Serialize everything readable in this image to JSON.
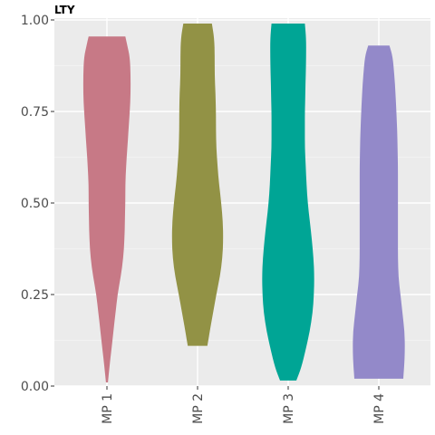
{
  "chart_data": {
    "type": "violin",
    "title": "LTY",
    "xlabel": "",
    "ylabel": "",
    "ylim": [
      0,
      1
    ],
    "yticks": [
      0,
      0.25,
      0.5,
      0.75,
      1
    ],
    "ytick_labels": [
      "0.00",
      "0.25",
      "0.50",
      "0.75",
      "1.00"
    ],
    "grid": true,
    "legend": "none",
    "categories": [
      "MP 1",
      "MP 2",
      "MP 3",
      "MP 4"
    ],
    "series": [
      {
        "category": "MP 1",
        "color": "#C77986",
        "min": 0.01,
        "max": 0.955,
        "profile": [
          [
            0.01,
            0.025
          ],
          [
            0.05,
            0.06
          ],
          [
            0.1,
            0.11
          ],
          [
            0.15,
            0.16
          ],
          [
            0.2,
            0.21
          ],
          [
            0.25,
            0.26
          ],
          [
            0.3,
            0.34
          ],
          [
            0.35,
            0.4
          ],
          [
            0.4,
            0.43
          ],
          [
            0.45,
            0.44
          ],
          [
            0.5,
            0.45
          ],
          [
            0.55,
            0.45
          ],
          [
            0.6,
            0.47
          ],
          [
            0.65,
            0.5
          ],
          [
            0.7,
            0.53
          ],
          [
            0.75,
            0.56
          ],
          [
            0.8,
            0.58
          ],
          [
            0.85,
            0.58
          ],
          [
            0.9,
            0.56
          ],
          [
            0.93,
            0.5
          ],
          [
            0.955,
            0.45
          ]
        ]
      },
      {
        "category": "MP 2",
        "color": "#929245",
        "min": 0.11,
        "max": 0.99,
        "profile": [
          [
            0.11,
            0.24
          ],
          [
            0.15,
            0.3
          ],
          [
            0.2,
            0.38
          ],
          [
            0.25,
            0.46
          ],
          [
            0.3,
            0.55
          ],
          [
            0.35,
            0.61
          ],
          [
            0.4,
            0.63
          ],
          [
            0.45,
            0.62
          ],
          [
            0.5,
            0.58
          ],
          [
            0.55,
            0.53
          ],
          [
            0.6,
            0.49
          ],
          [
            0.65,
            0.46
          ],
          [
            0.7,
            0.45
          ],
          [
            0.75,
            0.45
          ],
          [
            0.8,
            0.44
          ],
          [
            0.85,
            0.42
          ],
          [
            0.9,
            0.42
          ],
          [
            0.95,
            0.41
          ],
          [
            0.99,
            0.35
          ]
        ]
      },
      {
        "category": "MP 3",
        "color": "#00A595",
        "min": 0.015,
        "max": 0.99,
        "profile": [
          [
            0.015,
            0.2
          ],
          [
            0.05,
            0.32
          ],
          [
            0.1,
            0.43
          ],
          [
            0.15,
            0.53
          ],
          [
            0.2,
            0.6
          ],
          [
            0.25,
            0.63
          ],
          [
            0.3,
            0.64
          ],
          [
            0.35,
            0.62
          ],
          [
            0.4,
            0.58
          ],
          [
            0.45,
            0.53
          ],
          [
            0.5,
            0.48
          ],
          [
            0.55,
            0.45
          ],
          [
            0.6,
            0.43
          ],
          [
            0.65,
            0.41
          ],
          [
            0.7,
            0.41
          ],
          [
            0.75,
            0.41
          ],
          [
            0.8,
            0.42
          ],
          [
            0.85,
            0.43
          ],
          [
            0.9,
            0.44
          ],
          [
            0.95,
            0.44
          ],
          [
            0.99,
            0.41
          ]
        ]
      },
      {
        "category": "MP 4",
        "color": "#9389C9",
        "min": 0.02,
        "max": 0.93,
        "profile": [
          [
            0.02,
            0.6
          ],
          [
            0.05,
            0.62
          ],
          [
            0.1,
            0.64
          ],
          [
            0.15,
            0.63
          ],
          [
            0.2,
            0.58
          ],
          [
            0.25,
            0.53
          ],
          [
            0.3,
            0.48
          ],
          [
            0.35,
            0.47
          ],
          [
            0.4,
            0.47
          ],
          [
            0.45,
            0.47
          ],
          [
            0.5,
            0.47
          ],
          [
            0.55,
            0.47
          ],
          [
            0.6,
            0.47
          ],
          [
            0.65,
            0.46
          ],
          [
            0.7,
            0.45
          ],
          [
            0.75,
            0.43
          ],
          [
            0.8,
            0.41
          ],
          [
            0.85,
            0.38
          ],
          [
            0.9,
            0.34
          ],
          [
            0.93,
            0.26
          ]
        ]
      }
    ]
  }
}
